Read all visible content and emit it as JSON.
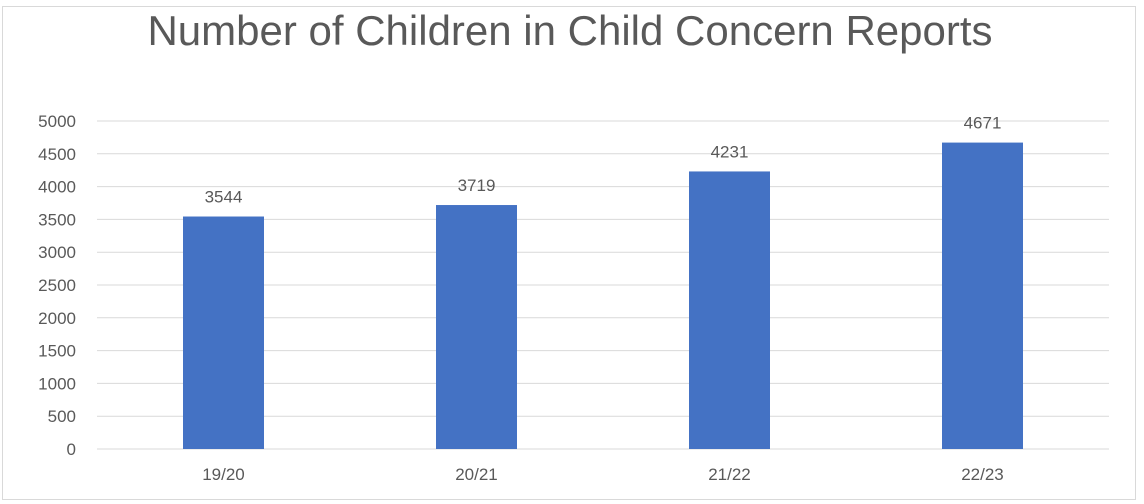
{
  "chart_data": {
    "type": "bar",
    "title": "Number of Children in Child Concern Reports",
    "categories": [
      "19/20",
      "20/21",
      "21/22",
      "22/23"
    ],
    "values": [
      3544,
      3719,
      4231,
      4671
    ],
    "data_labels": [
      "3544",
      "3719",
      "4231",
      "4671"
    ],
    "ylim": [
      0,
      5000
    ],
    "y_ticks": [
      0,
      500,
      1000,
      1500,
      2000,
      2500,
      3000,
      3500,
      4000,
      4500,
      5000
    ],
    "grid": true,
    "legend": "none",
    "xlabel": "",
    "ylabel": "",
    "colors": {
      "bar": "#4472c4",
      "grid": "#d9d9d9",
      "text": "#595959"
    }
  }
}
